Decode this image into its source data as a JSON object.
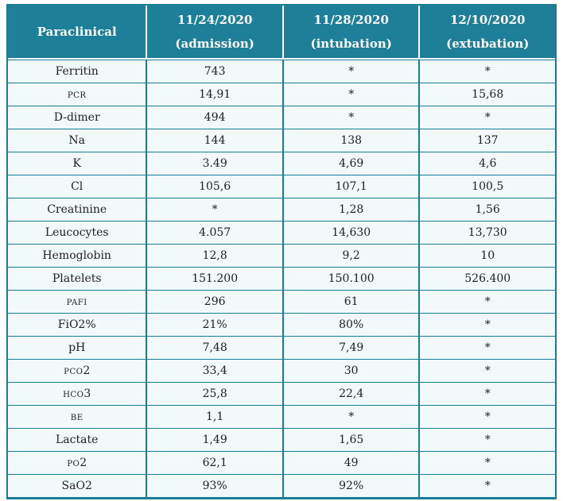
{
  "colors": {
    "accent": "#1e7f98",
    "border": "#1d7c95",
    "row_bg": "#f2f9fb",
    "header_text": "#ffffff",
    "body_text": "#212121"
  },
  "table": {
    "header": {
      "label": "Paraclinical",
      "columns": [
        {
          "date": "11/24/2020",
          "phase": "(admission)"
        },
        {
          "date": "11/28/2020",
          "phase": "(intubation)"
        },
        {
          "date": "12/10/2020",
          "phase": "(extubation)"
        }
      ]
    },
    "rows": [
      {
        "label": "Ferritin",
        "smallcaps": false,
        "values": [
          "743",
          "*",
          "*"
        ]
      },
      {
        "label": "PCR",
        "smallcaps": true,
        "values": [
          "14,91",
          "*",
          "15,68"
        ]
      },
      {
        "label": "D-dimer",
        "smallcaps": false,
        "values": [
          "494",
          "*",
          "*"
        ]
      },
      {
        "label": "Na",
        "smallcaps": false,
        "values": [
          "144",
          "138",
          "137"
        ]
      },
      {
        "label": "K",
        "smallcaps": false,
        "values": [
          "3.49",
          "4,69",
          "4,6"
        ]
      },
      {
        "label": "Cl",
        "smallcaps": false,
        "values": [
          "105,6",
          "107,1",
          "100,5"
        ]
      },
      {
        "label": "Creatinine",
        "smallcaps": false,
        "values": [
          "*",
          "1,28",
          "1,56"
        ]
      },
      {
        "label": "Leucocytes",
        "smallcaps": false,
        "values": [
          "4.057",
          "14,630",
          "13,730"
        ]
      },
      {
        "label": "Hemoglobin",
        "smallcaps": false,
        "values": [
          "12,8",
          "9,2",
          "10"
        ]
      },
      {
        "label": "Platelets",
        "smallcaps": false,
        "values": [
          "151.200",
          "150.100",
          "526.400"
        ]
      },
      {
        "label": "PAFI",
        "smallcaps": true,
        "values": [
          "296",
          "61",
          "*"
        ]
      },
      {
        "label": "FiO2%",
        "smallcaps": false,
        "values": [
          "21%",
          "80%",
          "*"
        ]
      },
      {
        "label": "pH",
        "smallcaps": false,
        "values": [
          "7,48",
          "7,49",
          "*"
        ]
      },
      {
        "label": "PCO2",
        "smallcaps": true,
        "values": [
          "33,4",
          "30",
          "*"
        ]
      },
      {
        "label": "HCO3",
        "smallcaps": true,
        "values": [
          "25,8",
          "22,4",
          "*"
        ]
      },
      {
        "label": "BE",
        "smallcaps": true,
        "values": [
          "1,1",
          "*",
          "*"
        ]
      },
      {
        "label": "Lactate",
        "smallcaps": false,
        "values": [
          "1,49",
          "1,65",
          "*"
        ]
      },
      {
        "label": "PO2",
        "smallcaps": true,
        "values": [
          "62,1",
          "49",
          "*"
        ]
      },
      {
        "label": "SaO2",
        "smallcaps": false,
        "values": [
          "93%",
          "92%",
          "*"
        ]
      }
    ]
  }
}
